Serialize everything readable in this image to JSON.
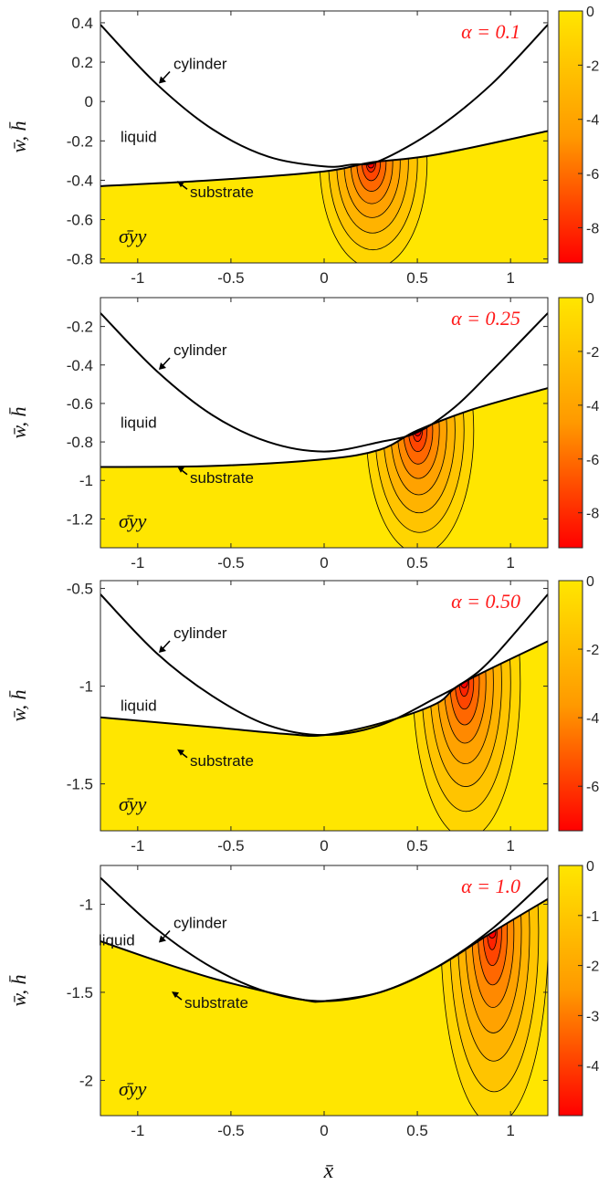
{
  "chart_data": [
    {
      "type": "contour",
      "panel": "alpha = 0.1",
      "title": "α = 0.1",
      "ylabel": "w̄, h̄",
      "xlim": [
        -1.2,
        1.2
      ],
      "ylim": [
        -0.82,
        0.46
      ],
      "x_ticks": [
        "-1",
        "-0.5",
        "0",
        "0.5",
        "1"
      ],
      "x_tick_values": [
        -1,
        -0.5,
        0,
        0.5,
        1
      ],
      "y_ticks": [
        "0.4",
        "0.2",
        "0",
        "-0.2",
        "-0.4",
        "-0.6",
        "-0.8"
      ],
      "y_tick_values": [
        0.4,
        0.2,
        0,
        -0.2,
        -0.4,
        -0.6,
        -0.8
      ],
      "colorbar_ticks": [
        "0",
        "-2",
        "-4",
        "-6",
        "-8"
      ],
      "colorbar_tick_values": [
        0,
        -2,
        -4,
        -6,
        -8
      ],
      "colorbar_range": [
        -9.3,
        0
      ],
      "contact_x": 0.25,
      "depth_x": 0.52,
      "cylinder": {
        "x": [
          -1.2,
          -0.9,
          -0.6,
          -0.3,
          0,
          0.15,
          0.3,
          0.6,
          0.9,
          1.2
        ],
        "y": [
          0.39,
          0.09,
          -0.14,
          -0.28,
          -0.33,
          -0.32,
          -0.3,
          -0.14,
          0.09,
          0.39
        ]
      },
      "substrate": {
        "x": [
          -1.2,
          -0.6,
          0,
          0.25,
          0.6,
          1.2
        ],
        "y": [
          -0.43,
          -0.4,
          -0.355,
          -0.31,
          -0.27,
          -0.15
        ]
      },
      "annotations": {
        "cylinder": "cylinder",
        "liquid": "liquid",
        "substrate": "substrate",
        "field": "σ̄yy"
      }
    },
    {
      "type": "contour",
      "panel": "alpha = 0.25",
      "title": "α = 0.25",
      "ylabel": "w̄, h̄",
      "xlim": [
        -1.2,
        1.2
      ],
      "ylim": [
        -1.35,
        -0.05
      ],
      "x_ticks": [
        "-1",
        "-0.5",
        "0",
        "0.5",
        "1"
      ],
      "x_tick_values": [
        -1,
        -0.5,
        0,
        0.5,
        1
      ],
      "y_ticks": [
        "-0.2",
        "-0.4",
        "-0.6",
        "-0.8",
        "-1",
        "-1.2"
      ],
      "y_tick_values": [
        -0.2,
        -0.4,
        -0.6,
        -0.8,
        -1,
        -1.2
      ],
      "colorbar_ticks": [
        "0",
        "-2",
        "-4",
        "-6",
        "-8"
      ],
      "colorbar_tick_values": [
        0,
        -2,
        -4,
        -6,
        -8
      ],
      "colorbar_range": [
        -9.3,
        0
      ],
      "contact_x": 0.5,
      "depth_x": 0.8,
      "cylinder": {
        "x": [
          -1.2,
          -0.9,
          -0.6,
          -0.3,
          0,
          0.3,
          0.5,
          0.7,
          0.9,
          1.2
        ],
        "y": [
          -0.13,
          -0.43,
          -0.66,
          -0.8,
          -0.85,
          -0.8,
          -0.75,
          -0.62,
          -0.43,
          -0.13
        ]
      },
      "substrate": {
        "x": [
          -1.2,
          -0.6,
          0,
          0.3,
          0.5,
          0.8,
          1.2
        ],
        "y": [
          -0.93,
          -0.925,
          -0.89,
          -0.84,
          -0.74,
          -0.63,
          -0.52
        ]
      },
      "annotations": {
        "cylinder": "cylinder",
        "liquid": "liquid",
        "substrate": "substrate",
        "field": "σ̄yy"
      }
    },
    {
      "type": "contour",
      "panel": "alpha = 0.50",
      "title": "α = 0.50",
      "ylabel": "w̄, h̄",
      "xlim": [
        -1.2,
        1.2
      ],
      "ylim": [
        -1.74,
        -0.46
      ],
      "x_ticks": [
        "-1",
        "-0.5",
        "0",
        "0.5",
        "1"
      ],
      "x_tick_values": [
        -1,
        -0.5,
        0,
        0.5,
        1
      ],
      "y_ticks": [
        "-0.5",
        "-1",
        "-1.5"
      ],
      "y_tick_values": [
        -0.5,
        -1,
        -1.5
      ],
      "colorbar_ticks": [
        "0",
        "-2",
        "-4",
        "-6"
      ],
      "colorbar_tick_values": [
        0,
        -2,
        -4,
        -6
      ],
      "colorbar_range": [
        -7.3,
        0
      ],
      "contact_x": 0.75,
      "depth_x": 0.96,
      "cylinder": {
        "x": [
          -1.2,
          -0.9,
          -0.6,
          -0.3,
          0,
          0.3,
          0.6,
          0.75,
          0.9,
          1.2
        ],
        "y": [
          -0.53,
          -0.83,
          -1.05,
          -1.2,
          -1.25,
          -1.2,
          -1.06,
          -0.98,
          -0.86,
          -0.53
        ]
      },
      "substrate": {
        "x": [
          -1.2,
          -0.6,
          -0.2,
          0,
          0.3,
          0.6,
          0.75,
          1.2
        ],
        "y": [
          -1.16,
          -1.21,
          -1.245,
          -1.25,
          -1.19,
          -1.09,
          -0.98,
          -0.77
        ]
      },
      "annotations": {
        "cylinder": "cylinder",
        "liquid": "liquid",
        "substrate": "substrate",
        "field": "σ̄yy"
      }
    },
    {
      "type": "contour",
      "panel": "alpha = 1.0",
      "title": "α = 1.0",
      "ylabel": "w̄, h̄",
      "xlabel": "x̄",
      "xlim": [
        -1.2,
        1.2
      ],
      "ylim": [
        -2.2,
        -0.78
      ],
      "x_ticks": [
        "-1",
        "-0.5",
        "0",
        "0.5",
        "1"
      ],
      "x_tick_values": [
        -1,
        -0.5,
        0,
        0.5,
        1
      ],
      "y_ticks": [
        "-1",
        "-1.5",
        "-2"
      ],
      "y_tick_values": [
        -1,
        -1.5,
        -2
      ],
      "colorbar_ticks": [
        "0",
        "-1",
        "-2",
        "-3",
        "-4"
      ],
      "colorbar_tick_values": [
        0,
        -1,
        -2,
        -3,
        -4
      ],
      "colorbar_range": [
        -5,
        0
      ],
      "contact_x": 0.9,
      "depth_x": 1.05,
      "cylinder": {
        "x": [
          -1.2,
          -0.9,
          -0.6,
          -0.3,
          0,
          0.3,
          0.6,
          0.9,
          1.2
        ],
        "y": [
          -0.85,
          -1.14,
          -1.36,
          -1.5,
          -1.55,
          -1.5,
          -1.36,
          -1.14,
          -0.85
        ]
      },
      "substrate": {
        "x": [
          -1.2,
          -0.9,
          -0.6,
          -0.3,
          -0.1,
          0,
          0.3,
          0.6,
          0.9,
          1.2
        ],
        "y": [
          -1.21,
          -1.32,
          -1.42,
          -1.5,
          -1.545,
          -1.55,
          -1.5,
          -1.36,
          -1.16,
          -0.97
        ]
      },
      "annotations": {
        "cylinder": "cylinder",
        "liquid": "liquid",
        "substrate": "substrate",
        "field": "σ̄yy"
      }
    }
  ],
  "colors": {
    "colormap_top": "#ffe600",
    "colormap_mid": "#ff9900",
    "colormap_bottom": "#ff0000",
    "curve": "#000000",
    "alpha_label": "#ff1a1a"
  }
}
